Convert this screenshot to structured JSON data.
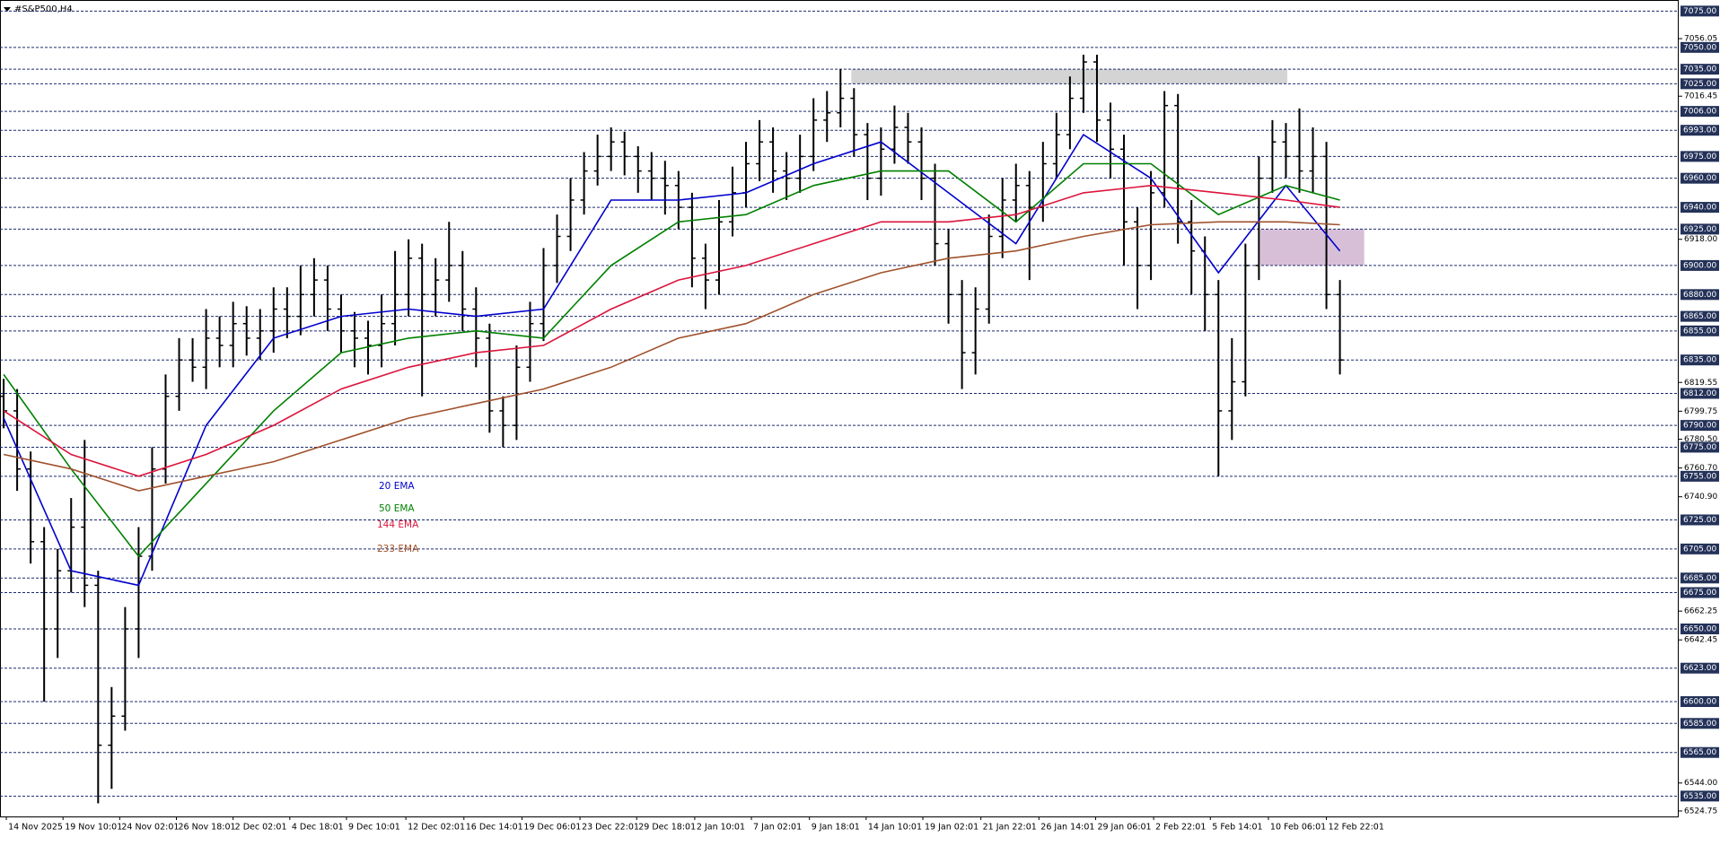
{
  "chart_data": {
    "type": "ohlc",
    "title": "#S&P500,H4",
    "bar_color": "#000000",
    "xlim": [
      -0.27,
      124.1
    ],
    "ylim": [
      6521,
      7082
    ],
    "xticks": [
      {
        "value": 0.2,
        "label": "14 Nov 2025"
      },
      {
        "value": 4.4,
        "label": "19 Nov 10:01"
      },
      {
        "value": 8.6,
        "label": "24 Nov 02:01"
      },
      {
        "value": 12.8,
        "label": "26 Nov 18:01"
      },
      {
        "value": 17,
        "label": "2 Dec 02:01"
      },
      {
        "value": 21.2,
        "label": "4 Dec 18:01"
      },
      {
        "value": 25.4,
        "label": "9 Dec 10:01"
      },
      {
        "value": 29.8,
        "label": "12 Dec 02:01"
      },
      {
        "value": 34.1,
        "label": "16 Dec 14:01"
      },
      {
        "value": 38.4,
        "label": "19 Dec 06:01"
      },
      {
        "value": 42.7,
        "label": "23 Dec 22:01"
      },
      {
        "value": 46.9,
        "label": "29 Dec 18:01"
      },
      {
        "value": 51.2,
        "label": "2 Jan 10:01"
      },
      {
        "value": 55.4,
        "label": "7 Jan 02:01"
      },
      {
        "value": 59.7,
        "label": "9 Jan 18:01"
      },
      {
        "value": 63.9,
        "label": "14 Jan 10:01"
      },
      {
        "value": 68.1,
        "label": "19 Jan 02:01"
      },
      {
        "value": 72.4,
        "label": "21 Jan 22:01"
      },
      {
        "value": 76.7,
        "label": "26 Jan 14:01"
      },
      {
        "value": 80.9,
        "label": "29 Jan 06:01"
      },
      {
        "value": 85.2,
        "label": "2 Feb 22:01"
      },
      {
        "value": 89.4,
        "label": "5 Feb 14:01"
      },
      {
        "value": 93.7,
        "label": "10 Feb 06:01"
      },
      {
        "value": 98,
        "label": "12 Feb 22:01"
      }
    ],
    "yticks": [
      7056.05,
      7016.45,
      {
        "value": 6918,
        "label": "6918.00"
      },
      6819.55,
      6799.75,
      {
        "value": 6780.5,
        "label": "6780.50"
      },
      {
        "value": 6760.7,
        "label": "6760.70"
      },
      {
        "value": 6740.9,
        "label": "6740.90"
      },
      6662.25,
      6642.45,
      {
        "value": 6544,
        "label": "6544.00"
      },
      6524.75
    ],
    "levels": [
      {
        "value": 7075,
        "label": "7075.00"
      },
      {
        "value": 7050,
        "label": "7050.00"
      },
      {
        "value": 7035,
        "label": "7035.00"
      },
      {
        "value": 7025,
        "label": "7025.00"
      },
      {
        "value": 7006,
        "label": "7006.00"
      },
      {
        "value": 6993,
        "label": "6993.00"
      },
      {
        "value": 6975,
        "label": "6975.00"
      },
      {
        "value": 6960,
        "label": "6960.00"
      },
      {
        "value": 6940,
        "label": "6940.00"
      },
      {
        "value": 6925,
        "label": "6925.00"
      },
      {
        "value": 6900,
        "label": "6900.00"
      },
      {
        "value": 6880,
        "label": "6880.00"
      },
      {
        "value": 6865,
        "label": "6865.00"
      },
      {
        "value": 6855,
        "label": "6855.00"
      },
      {
        "value": 6835,
        "label": "6835.00"
      },
      {
        "value": 6812,
        "label": "6812.00"
      },
      {
        "value": 6790,
        "label": "6790.00"
      },
      {
        "value": 6775,
        "label": "6775.00"
      },
      {
        "value": 6755,
        "label": "6755.00"
      },
      {
        "value": 6725,
        "label": "6725.00"
      },
      {
        "value": 6705,
        "label": "6705.00"
      },
      {
        "value": 6685,
        "label": "6685.00"
      },
      {
        "value": 6675,
        "label": "6675.00"
      },
      {
        "value": 6650,
        "label": "6650.00"
      },
      {
        "value": 6623,
        "label": "6623.00"
      },
      {
        "value": 6600,
        "label": "6600.00"
      },
      {
        "value": 6585,
        "label": "6585.00"
      },
      {
        "value": 6565,
        "label": "6565.00"
      },
      {
        "value": 6535,
        "label": "6535.00"
      }
    ],
    "zones": [
      {
        "x0": 62.8,
        "x1": 95.1,
        "y0": 7025,
        "y1": 7035,
        "color": "#d4d4d4"
      },
      {
        "x0": 93.1,
        "x1": 100.8,
        "y0": 6900,
        "y1": 6925,
        "color": "#d8bfd8"
      }
    ],
    "open": [
      6810,
      6800,
      6760,
      6710,
      6650,
      6690,
      6720,
      6680,
      6570,
      6590,
      6650,
      6700,
      6760,
      6810,
      6835,
      6830,
      6850,
      6845,
      6860,
      6850,
      6855,
      6870,
      6865,
      6880,
      6890,
      6870,
      6855,
      6850,
      6845,
      6860,
      6880,
      6905,
      6880,
      6890,
      6900,
      6870,
      6850,
      6800,
      6790,
      6830,
      6860,
      6900,
      6920,
      6945,
      6965,
      6975,
      6985,
      6975,
      6965,
      6960,
      6955,
      6940,
      6905,
      6890,
      6930,
      6950,
      6970,
      6985,
      6965,
      6960,
      6975,
      7000,
      7005,
      7015,
      6990,
      6960,
      6980,
      6995,
      6985,
      6960,
      6915,
      6880,
      6840,
      6870,
      6920,
      6945,
      6955,
      6940,
      6970,
      6990,
      7015,
      7040,
      7000,
      6980,
      6930,
      6900,
      6950,
      7010,
      6930,
      6910,
      6880,
      6800,
      6820,
      6900,
      6960,
      6985,
      6975,
      6965,
      6975,
      6880
    ],
    "high": [
      6822,
      6815,
      6772,
      6720,
      6705,
      6740,
      6780,
      6690,
      6610,
      6665,
      6720,
      6775,
      6825,
      6850,
      6850,
      6870,
      6865,
      6875,
      6872,
      6870,
      6885,
      6885,
      6900,
      6905,
      6900,
      6880,
      6868,
      6862,
      6880,
      6910,
      6918,
      6915,
      6905,
      6930,
      6910,
      6885,
      6860,
      6810,
      6845,
      6875,
      6912,
      6935,
      6960,
      6978,
      6990,
      6995,
      6992,
      6982,
      6978,
      6972,
      6965,
      6950,
      6915,
      6945,
      6968,
      6985,
      7000,
      6995,
      6978,
      6990,
      7015,
      7020,
      7035,
      7022,
      6998,
      6995,
      7010,
      7005,
      6995,
      6970,
      6925,
      6890,
      6885,
      6935,
      6960,
      6970,
      6965,
      6985,
      7005,
      7030,
      7045,
      7045,
      7012,
      6990,
      6940,
      6965,
      7020,
      7018,
      6945,
      6920,
      6890,
      6850,
      6915,
      6975,
      7000,
      6998,
      7008,
      6995,
      6985,
      6890
    ],
    "low": [
      6788,
      6745,
      6695,
      6600,
      6630,
      6675,
      6665,
      6530,
      6540,
      6580,
      6630,
      6690,
      6750,
      6800,
      6820,
      6815,
      6830,
      6830,
      6838,
      6835,
      6840,
      6850,
      6852,
      6865,
      6855,
      6840,
      6830,
      6825,
      6830,
      6845,
      6865,
      6810,
      6865,
      6875,
      6855,
      6830,
      6785,
      6775,
      6780,
      6820,
      6848,
      6888,
      6910,
      6935,
      6955,
      6965,
      6962,
      6950,
      6945,
      6935,
      6925,
      6885,
      6870,
      6880,
      6920,
      6940,
      6958,
      6950,
      6945,
      6950,
      6965,
      6985,
      6995,
      6975,
      6945,
      6948,
      6970,
      6970,
      6945,
      6900,
      6860,
      6815,
      6825,
      6860,
      6905,
      6930,
      6890,
      6930,
      6960,
      6980,
      7005,
      6985,
      6960,
      6900,
      6870,
      6890,
      6940,
      6915,
      6880,
      6855,
      6755,
      6780,
      6810,
      6890,
      6950,
      6960,
      6950,
      6950,
      6870,
      6825
    ],
    "close": [
      6800,
      6760,
      6710,
      6650,
      6690,
      6720,
      6680,
      6570,
      6590,
      6650,
      6700,
      6760,
      6810,
      6835,
      6830,
      6850,
      6845,
      6860,
      6850,
      6855,
      6870,
      6865,
      6880,
      6890,
      6870,
      6855,
      6850,
      6845,
      6860,
      6880,
      6905,
      6880,
      6890,
      6900,
      6870,
      6850,
      6800,
      6790,
      6830,
      6860,
      6900,
      6920,
      6945,
      6965,
      6975,
      6985,
      6975,
      6965,
      6960,
      6955,
      6940,
      6905,
      6890,
      6930,
      6950,
      6970,
      6985,
      6965,
      6960,
      6975,
      7000,
      7005,
      7015,
      6990,
      6960,
      6980,
      6995,
      6985,
      6960,
      6915,
      6880,
      6840,
      6870,
      6920,
      6945,
      6955,
      6940,
      6970,
      6990,
      7015,
      7040,
      7000,
      6980,
      6930,
      6900,
      6950,
      7010,
      6930,
      6910,
      6880,
      6800,
      6820,
      6900,
      6960,
      6985,
      6975,
      6965,
      6975,
      6880,
      6835
    ],
    "series": [
      {
        "name": "20 EMA",
        "color": "#0000cd",
        "x": [
          0,
          5,
          10,
          15,
          20,
          25,
          30,
          35,
          40,
          45,
          50,
          55,
          60,
          65,
          70,
          75,
          80,
          85,
          90,
          95,
          99
        ],
        "values": [
          6795,
          6690,
          6680,
          6790,
          6850,
          6865,
          6870,
          6865,
          6870,
          6945,
          6945,
          6950,
          6970,
          6985,
          6950,
          6915,
          6990,
          6960,
          6895,
          6955,
          6910
        ]
      },
      {
        "name": "50 EMA",
        "color": "#008000",
        "x": [
          0,
          5,
          10,
          15,
          20,
          25,
          30,
          35,
          40,
          45,
          50,
          55,
          60,
          65,
          70,
          75,
          80,
          85,
          90,
          95,
          99
        ],
        "values": [
          6825,
          6760,
          6700,
          6750,
          6800,
          6840,
          6850,
          6855,
          6850,
          6900,
          6930,
          6935,
          6955,
          6965,
          6965,
          6930,
          6970,
          6970,
          6935,
          6955,
          6945
        ]
      },
      {
        "name": "144 EMA",
        "color": "#dc143c",
        "x": [
          0,
          5,
          10,
          15,
          20,
          25,
          30,
          35,
          40,
          45,
          50,
          55,
          60,
          65,
          70,
          75,
          80,
          85,
          90,
          95,
          99
        ],
        "values": [
          6800,
          6770,
          6755,
          6770,
          6790,
          6815,
          6830,
          6840,
          6845,
          6870,
          6890,
          6900,
          6915,
          6930,
          6930,
          6935,
          6950,
          6955,
          6950,
          6945,
          6940
        ]
      },
      {
        "name": "233 EMA",
        "color": "#a0522d",
        "x": [
          0,
          5,
          10,
          15,
          20,
          25,
          30,
          35,
          40,
          45,
          50,
          55,
          60,
          65,
          70,
          75,
          80,
          85,
          90,
          95,
          99
        ],
        "values": [
          6770,
          6760,
          6745,
          6755,
          6765,
          6780,
          6795,
          6805,
          6815,
          6830,
          6850,
          6860,
          6880,
          6895,
          6905,
          6910,
          6920,
          6928,
          6930,
          6930,
          6928
        ]
      }
    ]
  }
}
